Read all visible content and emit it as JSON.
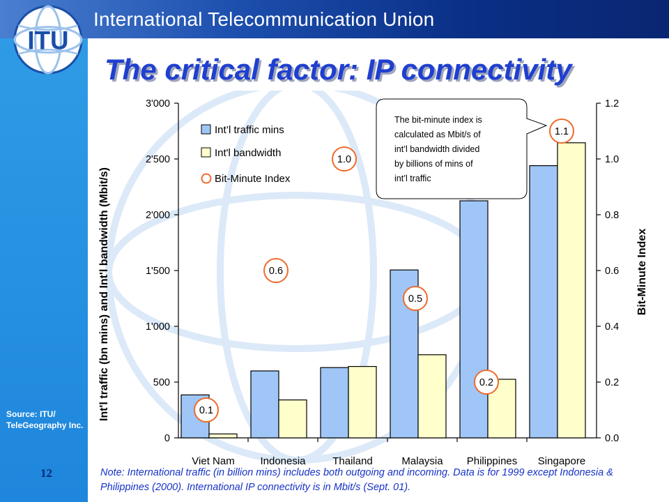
{
  "header": {
    "org_name": "International Telecommunication Union"
  },
  "logo": {
    "text": "ITU"
  },
  "slide": {
    "title": "The critical factor: IP connectivity",
    "source_note": "Source: ITU/ TeleGeography Inc.",
    "page_number": "12",
    "bottom_note": "Note: International traffic (in billion mins) includes both outgoing and incoming. Data is for 1999 except Indonesia & Philippines (2000). International IP connectivity is in Mbit/s (Sept. 01)."
  },
  "colors": {
    "header_dark": "#0a2672",
    "stripe": "#2a92e2",
    "title": "#1f3fcf",
    "traffic_bar": "#9fc6f6",
    "bandwidth_bar": "#ffffcc",
    "index_marker": "#f06a2a"
  },
  "chart_data": {
    "type": "bar",
    "categories": [
      "Viet Nam",
      "Indonesia",
      "Thailand",
      "Malaysia",
      "Philippines",
      "Singapore"
    ],
    "series": [
      {
        "name": "Int’l traffic mins",
        "axis": "left",
        "values": [
          385,
          600,
          630,
          1505,
          2125,
          2440
        ]
      },
      {
        "name": "Int'l bandwidth",
        "axis": "left",
        "values": [
          35,
          340,
          640,
          745,
          525,
          2645
        ]
      },
      {
        "name": "Bit-Minute Index",
        "axis": "right",
        "type": "marker",
        "values": [
          0.1,
          0.6,
          1.0,
          0.5,
          0.2,
          1.1
        ],
        "labels": [
          "0.1",
          "0.6",
          "1.0",
          "0.5",
          "0.2",
          "1.1"
        ]
      }
    ],
    "y_left": {
      "label": "Int'l traffic (bn mins) and Int'l bandwidth (Mbit/s)",
      "range": [
        0,
        3000
      ],
      "ticks": [
        0,
        500,
        1000,
        1500,
        2000,
        2500,
        3000
      ],
      "tick_labels": [
        "0",
        "500",
        "1'000",
        "1'500",
        "2'000",
        "2'500",
        "3'000"
      ]
    },
    "y_right": {
      "label": "Bit-Minute Index",
      "range": [
        0,
        1.2
      ],
      "ticks": [
        0,
        0.2,
        0.4,
        0.6,
        0.8,
        1.0,
        1.2
      ],
      "tick_labels": [
        "0.0",
        "0.2",
        "0.4",
        "0.6",
        "0.8",
        "1.0",
        "1.2"
      ]
    },
    "legend": {
      "placement": "top-left",
      "entries": [
        "Int’l traffic mins",
        "Int'l bandwidth",
        "Bit-Minute Index"
      ]
    },
    "callout": {
      "lines": [
        "The bit-minute index is",
        "calculated as Mbit/s of",
        "int’l bandwidth divided",
        "by billions of mins of",
        "int’l traffic"
      ]
    },
    "grid": false
  }
}
